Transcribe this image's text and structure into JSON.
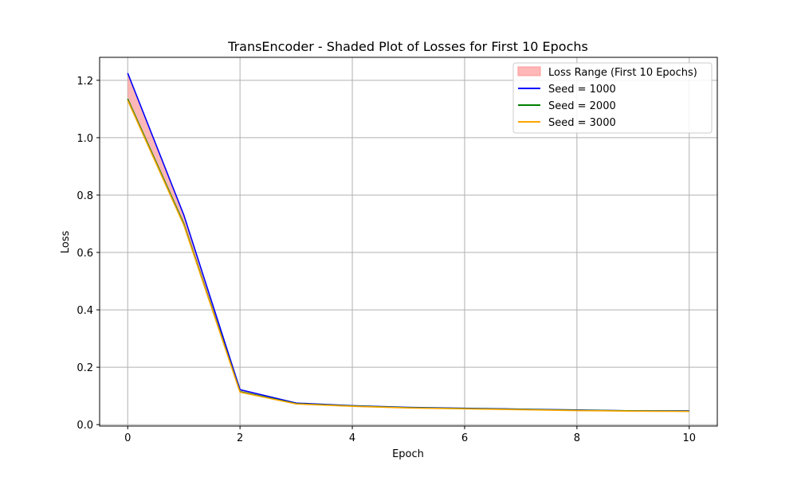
{
  "chart_data": {
    "type": "line",
    "title": "TransEncoder - Shaded Plot of Losses for First 10 Epochs",
    "xlabel": "Epoch",
    "ylabel": "Loss",
    "xlim": [
      -0.5,
      10.5
    ],
    "ylim": [
      -0.005,
      1.28
    ],
    "xticks": [
      0,
      2,
      4,
      6,
      8,
      10
    ],
    "yticks": [
      0.0,
      0.2,
      0.4,
      0.6,
      0.8,
      1.0,
      1.2
    ],
    "grid": true,
    "legend_position": "top-right",
    "x": [
      0,
      1,
      2,
      3,
      4,
      5,
      6,
      7,
      8,
      9,
      10
    ],
    "shaded_region": {
      "name": "Loss Range (First 10 Epochs)",
      "color": "#ff9999",
      "lower": [
        1.13,
        0.695,
        0.113,
        0.072,
        0.064,
        0.058,
        0.055,
        0.052,
        0.049,
        0.047,
        0.046
      ],
      "upper": [
        1.225,
        0.73,
        0.122,
        0.075,
        0.066,
        0.06,
        0.057,
        0.054,
        0.051,
        0.048,
        0.048
      ]
    },
    "series": [
      {
        "name": "Seed = 1000",
        "color": "#0000ff",
        "values": [
          1.225,
          0.73,
          0.122,
          0.075,
          0.066,
          0.06,
          0.057,
          0.054,
          0.051,
          0.048,
          0.048
        ]
      },
      {
        "name": "Seed = 2000",
        "color": "#008000",
        "values": [
          1.135,
          0.7,
          0.115,
          0.073,
          0.065,
          0.059,
          0.056,
          0.053,
          0.05,
          0.048,
          0.047
        ]
      },
      {
        "name": "Seed = 3000",
        "color": "#ffa500",
        "values": [
          1.13,
          0.695,
          0.113,
          0.072,
          0.064,
          0.058,
          0.055,
          0.052,
          0.049,
          0.047,
          0.046
        ]
      }
    ]
  }
}
